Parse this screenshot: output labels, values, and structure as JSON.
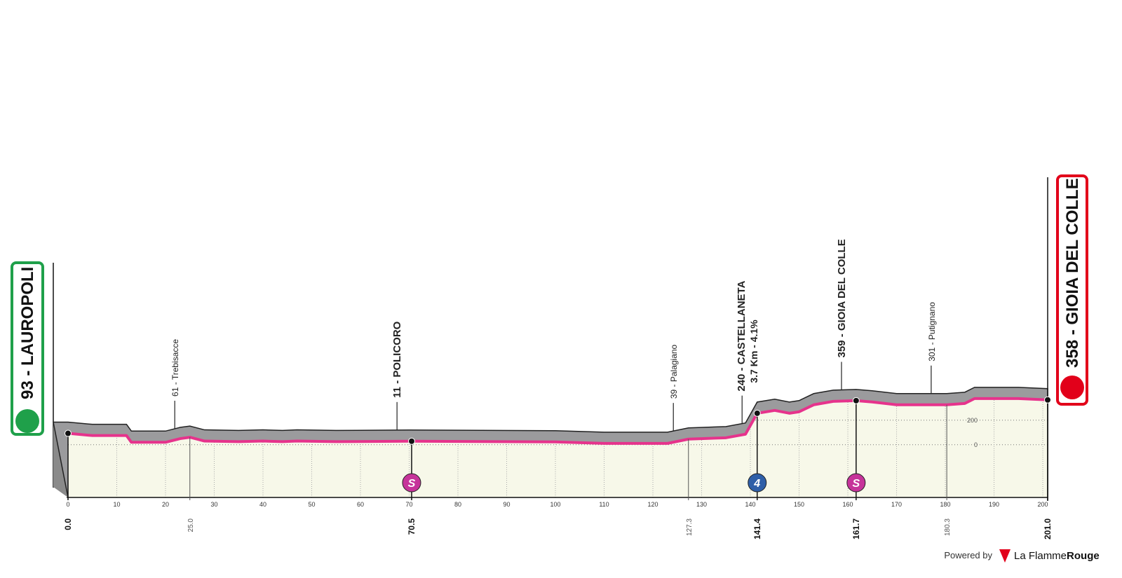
{
  "chart_data": {
    "type": "area",
    "x": [
      0,
      5,
      12,
      13,
      20,
      23,
      25,
      28,
      35,
      40,
      44,
      47,
      55,
      70,
      100,
      110,
      123,
      127.3,
      135,
      139,
      141.4,
      145,
      148,
      150,
      153,
      157,
      161.7,
      165,
      170,
      180.3,
      184,
      186,
      195,
      201
    ],
    "values": [
      93,
      75,
      75,
      20,
      20,
      50,
      61,
      30,
      25,
      30,
      25,
      30,
      25,
      29,
      23,
      11,
      11,
      46,
      57,
      86,
      257,
      280,
      257,
      269,
      326,
      354,
      360,
      349,
      326,
      326,
      337,
      377,
      377,
      366
    ],
    "color": "#e6338c",
    "xlim": [
      0,
      201
    ],
    "xticks": [
      0,
      10,
      20,
      30,
      40,
      50,
      60,
      70,
      80,
      90,
      100,
      110,
      120,
      130,
      140,
      150,
      160,
      170,
      180,
      190,
      200
    ],
    "ylim": [
      -430,
      2200
    ],
    "yticks": [
      0,
      200
    ],
    "grid": true,
    "start": {
      "label": "93 - LAUROPOLI",
      "x": 0
    },
    "finish": {
      "label": "358 - GIOIA DEL COLLE",
      "x": 201
    },
    "km_markers": [
      {
        "label": "0.0",
        "x": 0,
        "bold": true
      },
      {
        "label": "25.0",
        "x": 25,
        "bold": false
      },
      {
        "label": "70.5",
        "x": 70.5,
        "bold": true
      },
      {
        "label": "127.3",
        "x": 127.3,
        "bold": false
      },
      {
        "label": "141.4",
        "x": 141.4,
        "bold": true
      },
      {
        "label": "161.7",
        "x": 161.7,
        "bold": true
      },
      {
        "label": "180.3",
        "x": 180.3,
        "bold": false
      },
      {
        "label": "201.0",
        "x": 201,
        "bold": true
      }
    ],
    "annotations": [
      {
        "label": "61 - Trebisacce",
        "x": 21.9,
        "bold": false
      },
      {
        "label": "11 - POLICORO",
        "x": 67.5,
        "bold": true
      },
      {
        "label": "39 - Palagiano",
        "x": 124.2,
        "bold": false
      },
      {
        "label": "240 - CASTELLANETA",
        "sublabel": "3.7 Km - 4.1%",
        "x": 138.3,
        "bold": true
      },
      {
        "label": "359 - GIOIA DEL COLLE",
        "x": 158.7,
        "bold": true
      },
      {
        "label": "301 - Putignano",
        "x": 177.1,
        "bold": false
      }
    ],
    "sprints": [
      {
        "label": "S",
        "x": 70.5
      },
      {
        "label": "S",
        "x": 161.7
      }
    ],
    "climbs": [
      {
        "label": "4",
        "x": 141.4
      }
    ],
    "footer": {
      "powered": "Powered by",
      "brand": "La Flamme",
      "brand2": "Rouge"
    }
  }
}
